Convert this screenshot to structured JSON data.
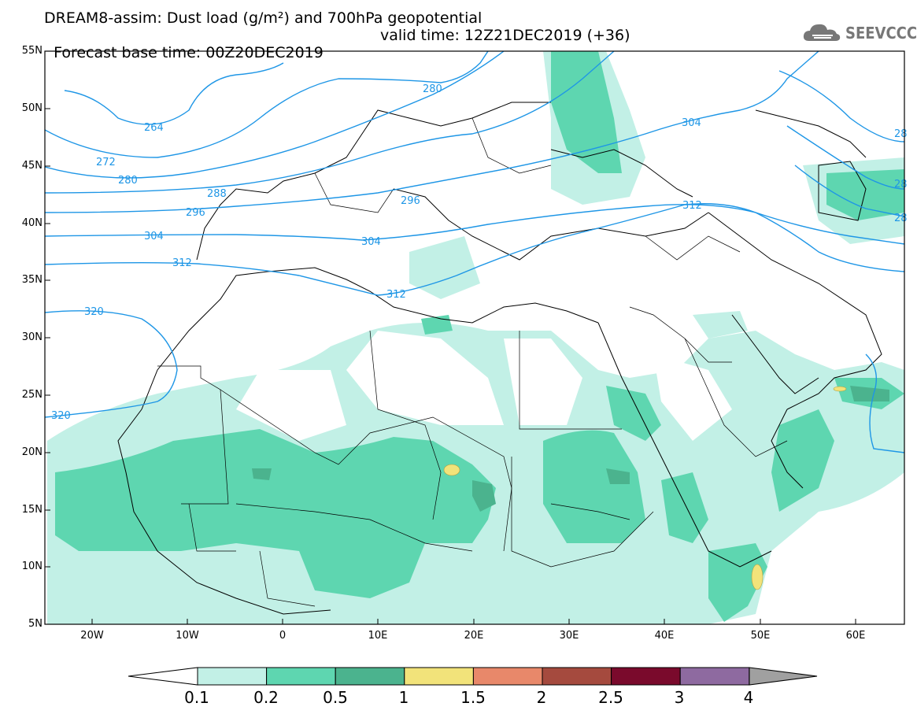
{
  "title": {
    "line1": "DREAM8-assim: Dust load (g/m²) and 700hPa geopotential",
    "line2_base": "Forecast base time: 00Z20DEC2019",
    "line2_valid": "valid time: 12Z21DEC2019 (+36)"
  },
  "logo": {
    "text": "SEEVCCC",
    "icon": "cloud-icon"
  },
  "map": {
    "lat_labels": [
      "55N",
      "50N",
      "45N",
      "40N",
      "35N",
      "30N",
      "25N",
      "20N",
      "15N",
      "10N",
      "5N"
    ],
    "lon_labels": [
      "20W",
      "10W",
      "0",
      "10E",
      "20E",
      "30E",
      "40E",
      "50E",
      "60E"
    ],
    "contour_labels": [
      "264",
      "272",
      "280",
      "280",
      "288",
      "296",
      "296",
      "304",
      "304",
      "304",
      "312",
      "312",
      "312",
      "320",
      "320",
      "28",
      "28",
      "28"
    ]
  },
  "colorbar": {
    "ticks": [
      "0.1",
      "0.2",
      "0.5",
      "1",
      "1.5",
      "2",
      "2.5",
      "3",
      "4"
    ],
    "colors": [
      "#c2f0e6",
      "#5ed6b0",
      "#4bb38e",
      "#f2e37a",
      "#e8886a",
      "#a54a3e",
      "#7a0a2c",
      "#8e6aa0",
      "#a0a0a0"
    ],
    "under_color": "#ffffff"
  }
}
